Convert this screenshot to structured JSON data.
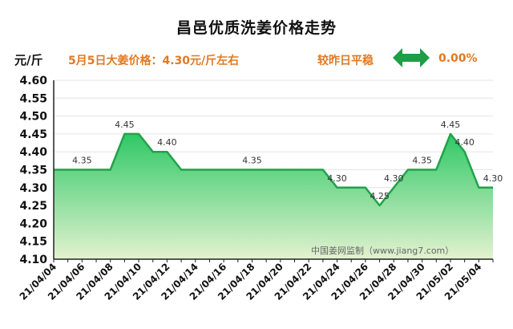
{
  "header": {
    "title": "昌邑优质洗姜价格走势",
    "unit": "元/斤",
    "price_note": "5月5日大姜价格：4.30元/斤左右",
    "compare_label": "较昨日平稳",
    "compare_value": "0.00%",
    "compare_icon": "double-arrow-icon",
    "accent_color": "#e07a22",
    "arrow_color": "#1e9e46"
  },
  "watermark": "中国姜网监制（www.jiang7.com）",
  "chart_data": {
    "type": "area",
    "title": "昌邑优质洗姜价格走势",
    "ylabel": "元/斤",
    "ylim": [
      4.1,
      4.6
    ],
    "yticks": [
      "4.60",
      "4.55",
      "4.50",
      "4.45",
      "4.40",
      "4.35",
      "4.30",
      "4.25",
      "4.20",
      "4.15",
      "4.10"
    ],
    "xticks": [
      "21/04/04",
      "21/04/06",
      "21/04/08",
      "21/04/10",
      "21/04/12",
      "21/04/14",
      "21/04/16",
      "21/04/18",
      "21/04/20",
      "21/04/22",
      "21/04/24",
      "21/04/26",
      "21/04/28",
      "21/04/30",
      "21/05/02",
      "21/05/04"
    ],
    "x": [
      "21/04/04",
      "21/04/05",
      "21/04/06",
      "21/04/07",
      "21/04/08",
      "21/04/09",
      "21/04/10",
      "21/04/11",
      "21/04/12",
      "21/04/13",
      "21/04/14",
      "21/04/15",
      "21/04/16",
      "21/04/17",
      "21/04/18",
      "21/04/19",
      "21/04/20",
      "21/04/21",
      "21/04/22",
      "21/04/23",
      "21/04/24",
      "21/04/25",
      "21/04/26",
      "21/04/27",
      "21/04/28",
      "21/04/29",
      "21/04/30",
      "21/05/01",
      "21/05/02",
      "21/05/03",
      "21/05/04",
      "21/05/05"
    ],
    "values": [
      4.35,
      4.35,
      4.35,
      4.35,
      4.35,
      4.45,
      4.45,
      4.4,
      4.4,
      4.35,
      4.35,
      4.35,
      4.35,
      4.35,
      4.35,
      4.35,
      4.35,
      4.35,
      4.35,
      4.35,
      4.3,
      4.3,
      4.3,
      4.25,
      4.3,
      4.35,
      4.35,
      4.35,
      4.45,
      4.4,
      4.3,
      4.3
    ],
    "data_labels": [
      {
        "i": 2,
        "text": "4.35"
      },
      {
        "i": 5,
        "text": "4.45"
      },
      {
        "i": 8,
        "text": "4.40"
      },
      {
        "i": 14,
        "text": "4.35"
      },
      {
        "i": 20,
        "text": "4.30"
      },
      {
        "i": 23,
        "text": "4.25"
      },
      {
        "i": 24,
        "text": "4.30"
      },
      {
        "i": 26,
        "text": "4.35"
      },
      {
        "i": 28,
        "text": "4.45"
      },
      {
        "i": 29,
        "text": "4.40"
      },
      {
        "i": 31,
        "text": "4.30"
      }
    ],
    "line_color": "#22a24a",
    "fill_top_color": "#2fc866",
    "fill_bottom_color": "#e3f2d0",
    "grid": true
  }
}
